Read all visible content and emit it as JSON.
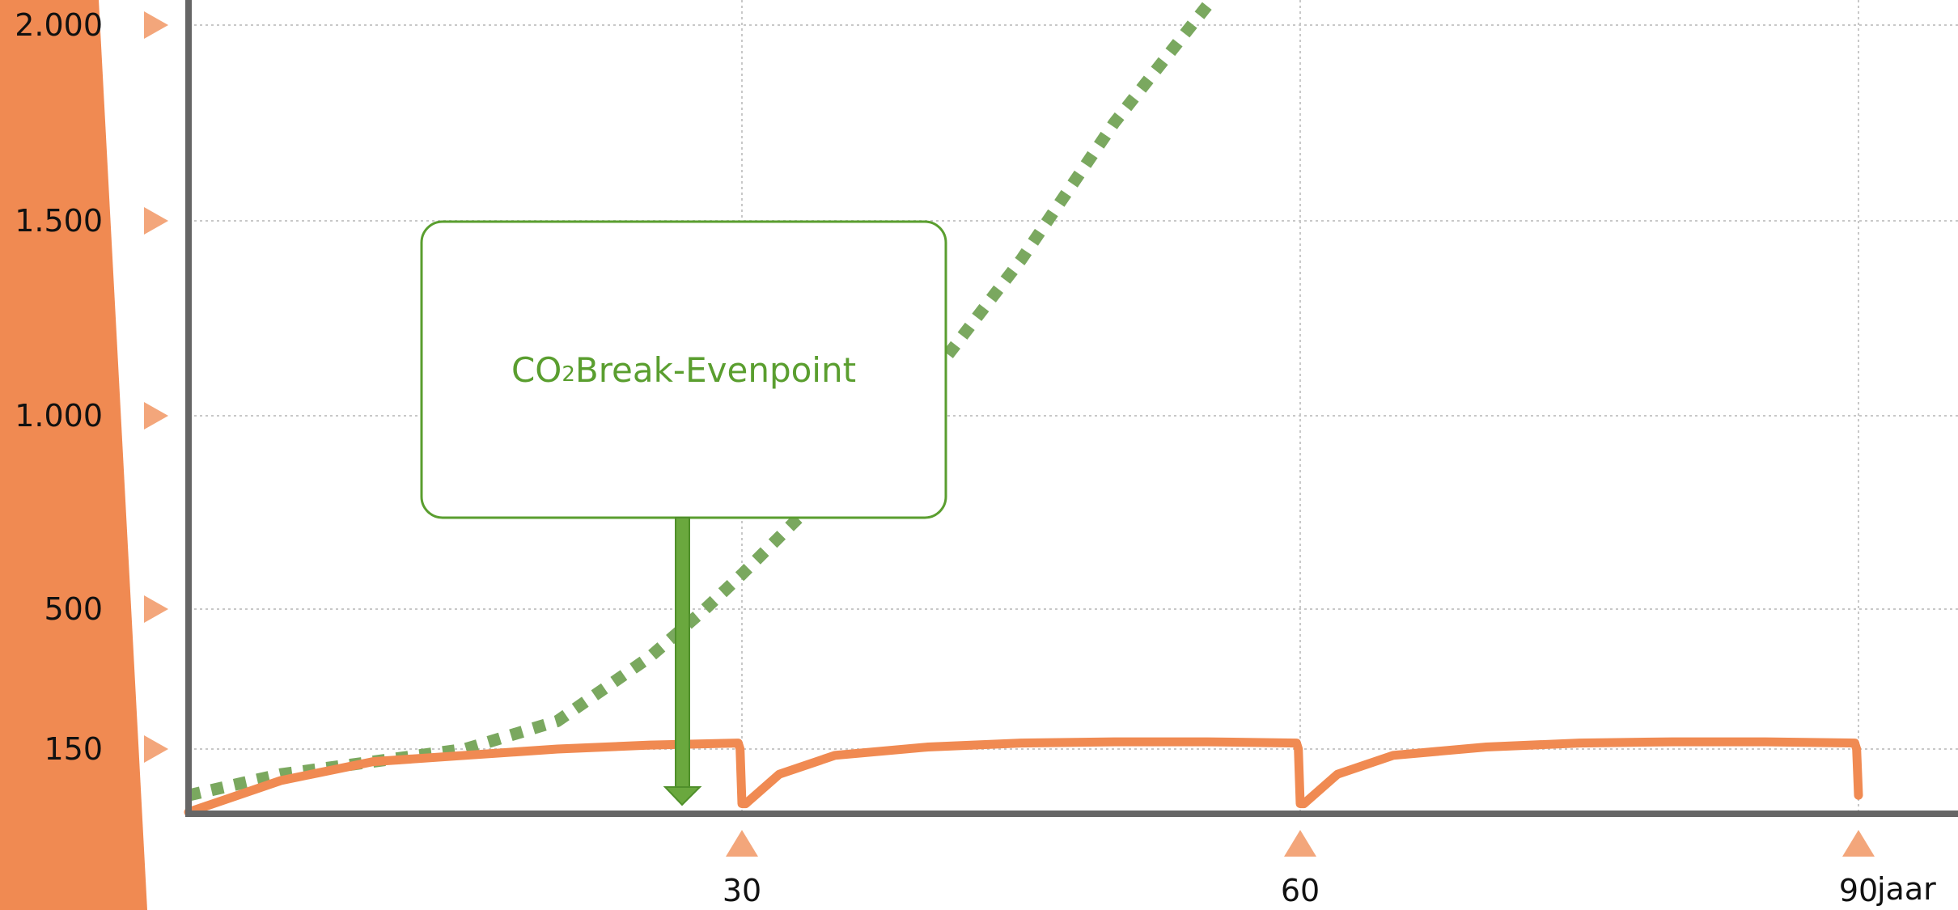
{
  "chart_data": {
    "type": "line",
    "title": "",
    "xlabel": "jaar",
    "ylabel": "",
    "x_ticks": [
      30,
      60,
      90
    ],
    "y_ticks": [
      {
        "value": 150,
        "label": "150"
      },
      {
        "value": 500,
        "label": "500"
      },
      {
        "value": 1000,
        "label": "1.000"
      },
      {
        "value": 1500,
        "label": "1.500"
      },
      {
        "value": 2000,
        "label": "2.000"
      }
    ],
    "xlim": [
      0,
      95
    ],
    "ylim": [
      0,
      2000
    ],
    "grid": true,
    "series": [
      {
        "style": "dotted",
        "color": "#7aa85f",
        "x": [
          0,
          5,
          10,
          15,
          20,
          25,
          28,
          30,
          35,
          40,
          45,
          50,
          55
        ],
        "y": [
          40,
          90,
          120,
          150,
          220,
          380,
          500,
          590,
          830,
          1090,
          1400,
          1750,
          2050
        ]
      },
      {
        "style": "solid",
        "color": "#f08a52",
        "x": [
          0,
          2,
          5,
          10,
          15,
          20,
          25,
          29.8,
          29.9,
          30,
          30.2,
          32,
          35,
          40,
          45,
          50,
          55,
          59.8,
          59.9,
          60,
          60.2,
          62,
          65,
          70,
          75,
          80,
          85,
          89.8,
          89.9,
          90
        ],
        "y": [
          0,
          30,
          75,
          120,
          135,
          150,
          160,
          165,
          150,
          20,
          20,
          90,
          135,
          155,
          165,
          168,
          168,
          165,
          150,
          20,
          20,
          90,
          135,
          155,
          165,
          168,
          168,
          165,
          150,
          40
        ]
      }
    ],
    "annotations": [
      {
        "text": "CO",
        "subscript": "2",
        "text_after": " Break-Evenpoint",
        "target_x": 26.5,
        "color": "#5a9e2f"
      }
    ],
    "colors": {
      "axis": "#666666",
      "grid": "#c8c8c8",
      "left_band": "#f08a52",
      "tick_marker": "#f3a67b"
    }
  }
}
